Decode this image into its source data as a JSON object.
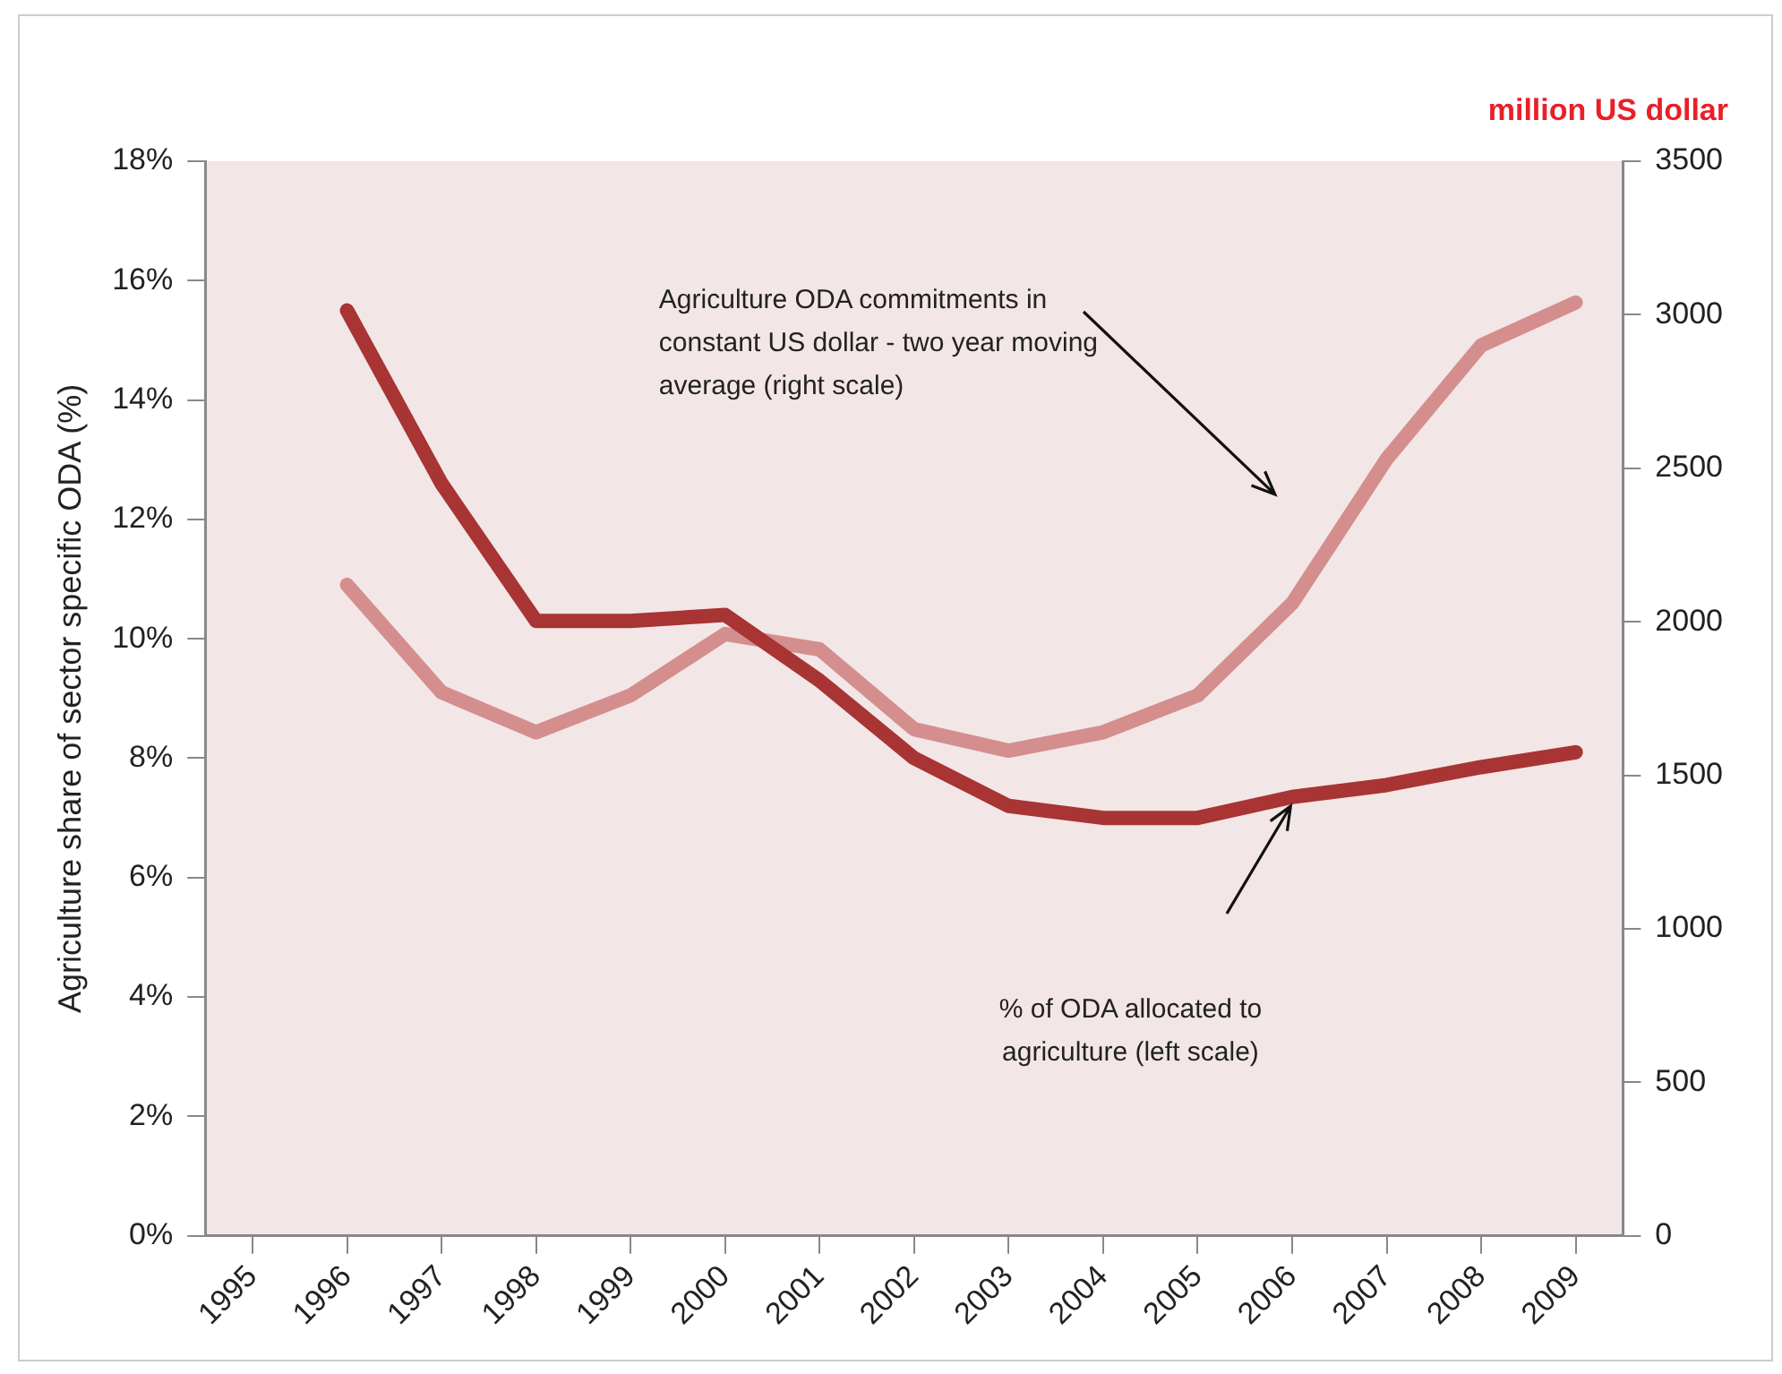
{
  "chart_data": {
    "type": "line",
    "ylabel": "Agriculture share of sector specific ODA (%)",
    "y2label": "million US dollar",
    "categories": [
      "1995",
      "1996",
      "1997",
      "1998",
      "1999",
      "2000",
      "2001",
      "2002",
      "2003",
      "2004",
      "2005",
      "2006",
      "2007",
      "2008",
      "2009"
    ],
    "series": [
      {
        "color": "#a83434",
        "values": [
          null,
          15.5,
          12.6,
          10.3,
          10.3,
          10.4,
          9.3,
          8.0,
          7.2,
          7.0,
          7.0,
          7.35,
          7.55,
          7.85,
          8.1
        ]
      },
      {
        "color": "#d48e8e",
        "axis": "y2",
        "values": [
          null,
          2120,
          1770,
          1640,
          1760,
          1960,
          1910,
          1650,
          1580,
          1640,
          1760,
          2060,
          2530,
          2900,
          3040
        ]
      }
    ],
    "ylim": [
      0,
      18
    ],
    "yticks": [
      {
        "value": 0,
        "label": "0%"
      },
      {
        "value": 2,
        "label": "2%"
      },
      {
        "value": 4,
        "label": "4%"
      },
      {
        "value": 6,
        "label": "6%"
      },
      {
        "value": 8,
        "label": "8%"
      },
      {
        "value": 10,
        "label": "10%"
      },
      {
        "value": 12,
        "label": "12%"
      },
      {
        "value": 14,
        "label": "14%"
      },
      {
        "value": 16,
        "label": "16%"
      },
      {
        "value": 18,
        "label": "18%"
      }
    ],
    "y2lim": [
      0,
      3500
    ],
    "y2ticks": [
      0,
      500,
      1000,
      1500,
      2000,
      2500,
      3000,
      3500
    ],
    "annotations": [
      "Agriculture ODA commitments in constant US dollar - two year moving average (right scale)",
      "% of ODA allocated to agriculture (left scale)"
    ],
    "grid": false,
    "legend": false,
    "marker": "none",
    "line_style": "solid"
  }
}
